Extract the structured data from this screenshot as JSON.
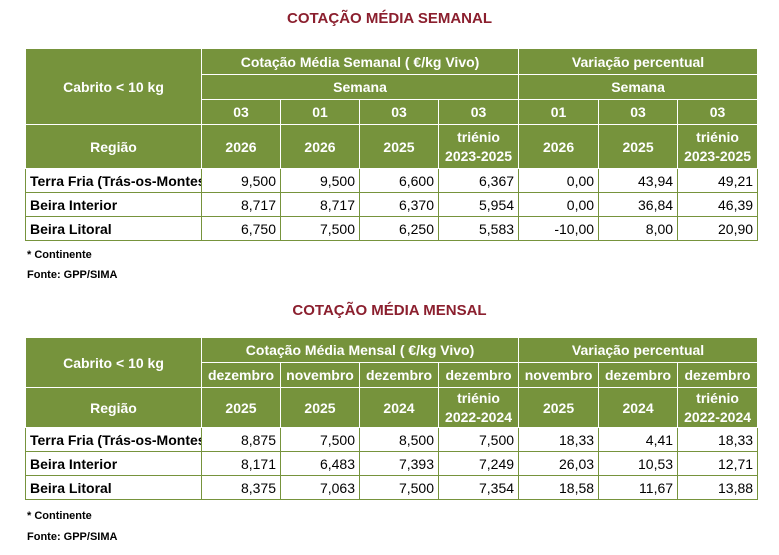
{
  "weekly": {
    "title": "COTAÇÃO MÉDIA SEMANAL",
    "corner": "Cabrito < 10 kg",
    "region_label": "Região",
    "group1": "Cotação Média Semanal ( €/kg Vivo)",
    "group2": "Variação percentual",
    "sub1": "Semana",
    "sub2": "Semana",
    "period_row": [
      "03",
      "01",
      "03",
      "03",
      "01",
      "03",
      "03"
    ],
    "year_row": [
      "2026",
      "2026",
      "2025",
      "triénio 2023-2025",
      "2026",
      "2025",
      "triénio 2023-2025"
    ],
    "rows": [
      {
        "region": "Terra Fria (Trás-os-Montes)",
        "values": [
          "9,500",
          "9,500",
          "6,600",
          "6,367",
          "0,00",
          "43,94",
          "49,21"
        ]
      },
      {
        "region": "Beira Interior",
        "values": [
          "8,717",
          "8,717",
          "6,370",
          "5,954",
          "0,00",
          "36,84",
          "46,39"
        ]
      },
      {
        "region": "Beira Litoral",
        "values": [
          "6,750",
          "7,500",
          "6,250",
          "5,583",
          "-10,00",
          "8,00",
          "20,90"
        ]
      }
    ],
    "note": "* Continente",
    "source": "Fonte: GPP/SIMA"
  },
  "monthly": {
    "title": "COTAÇÃO MÉDIA MENSAL",
    "corner": "Cabrito < 10 kg",
    "region_label": "Região",
    "group1": "Cotação Média Mensal ( €/kg Vivo)",
    "group2": "Variação percentual",
    "period_row": [
      "dezembro",
      "novembro",
      "dezembro",
      "dezembro",
      "novembro",
      "dezembro",
      "dezembro"
    ],
    "year_row": [
      "2025",
      "2025",
      "2024",
      "triénio 2022-2024",
      "2025",
      "2024",
      "triénio 2022-2024"
    ],
    "rows": [
      {
        "region": "Terra Fria (Trás-os-Montes)",
        "values": [
          "8,875",
          "7,500",
          "8,500",
          "7,500",
          "18,33",
          "4,41",
          "18,33"
        ]
      },
      {
        "region": "Beira Interior",
        "values": [
          "8,171",
          "6,483",
          "7,393",
          "7,249",
          "26,03",
          "10,53",
          "12,71"
        ]
      },
      {
        "region": "Beira Litoral",
        "values": [
          "8,375",
          "7,063",
          "7,500",
          "7,354",
          "18,58",
          "11,67",
          "13,88"
        ]
      }
    ],
    "note": "* Continente",
    "source": "Fonte: GPP/SIMA"
  }
}
